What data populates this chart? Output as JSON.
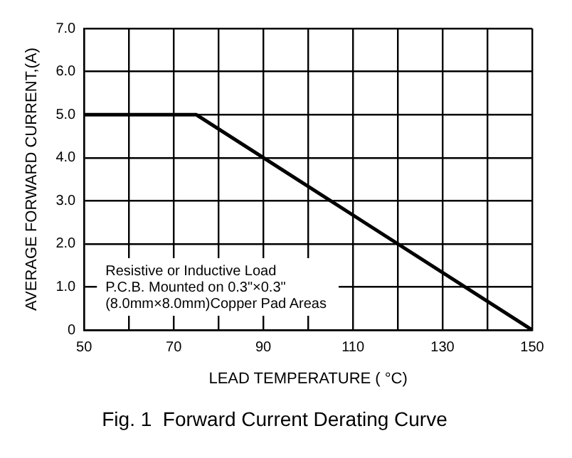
{
  "chart_data": {
    "type": "line",
    "title": "Fig. 1  Forward Current Derating Curve",
    "xlabel": "LEAD TEMPERATURE ( °C)",
    "ylabel": "AVERAGE FORWARD CURRENT,(A)",
    "series": [
      {
        "color": "#000000",
        "x": [
          50,
          75,
          150
        ],
        "values": [
          5,
          5,
          0
        ]
      }
    ],
    "xlim": [
      50,
      150
    ],
    "xticks": [
      50,
      {
        "value": 60,
        "label": null
      },
      70,
      {
        "value": 80,
        "label": null
      },
      90,
      {
        "value": 100,
        "label": null
      },
      110,
      {
        "value": 120,
        "label": null
      },
      130,
      {
        "value": 140,
        "label": null
      },
      150
    ],
    "ylim": [
      0,
      7
    ],
    "yticks": [
      0,
      {
        "value": 1,
        "label": "1.0"
      },
      {
        "value": 2,
        "label": "2.0"
      },
      {
        "value": 3,
        "label": "3.0"
      },
      {
        "value": 4,
        "label": "4.0"
      },
      {
        "value": 5,
        "label": "5.0"
      },
      {
        "value": 6,
        "label": "6.0"
      },
      {
        "value": 7,
        "label": "7.0"
      }
    ],
    "grid": true,
    "legend": false,
    "marker": "none",
    "line_style": "solid",
    "annotations": [
      "Resistive or Inductive Load",
      "P.C.B. Mounted on 0.3\"×0.3\"",
      "(8.0mm×8.0mm)Copper Pad Areas"
    ]
  }
}
